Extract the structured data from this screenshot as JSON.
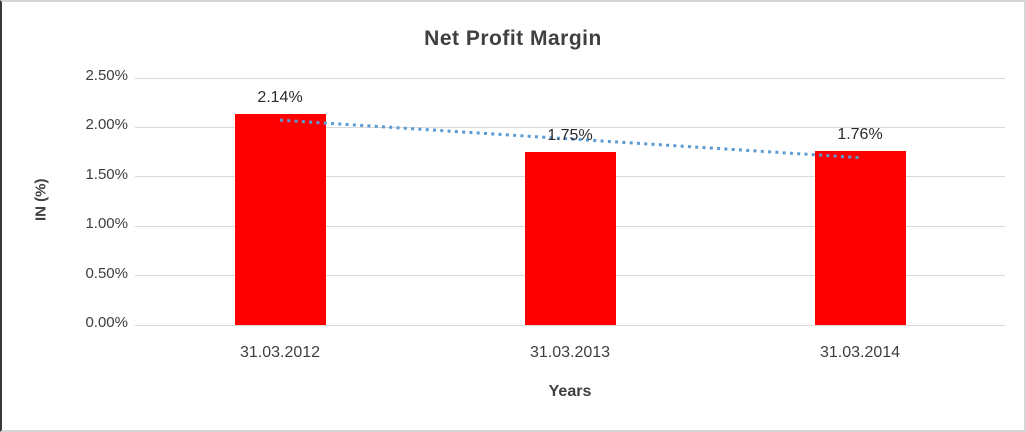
{
  "chart_data": {
    "type": "bar",
    "title": "Net Profit Margin",
    "xlabel": "Years",
    "ylabel": "IN (%)",
    "categories": [
      "31.03.2012",
      "31.03.2013",
      "31.03.2014"
    ],
    "values": [
      2.14,
      1.75,
      1.76
    ],
    "data_labels": [
      "2.14%",
      "1.75%",
      "1.76%"
    ],
    "yticks": [
      {
        "value": 0.0,
        "label": "0.00%"
      },
      {
        "value": 0.5,
        "label": "0.50%"
      },
      {
        "value": 1.0,
        "label": "1.00%"
      },
      {
        "value": 1.5,
        "label": "1.50%"
      },
      {
        "value": 2.0,
        "label": "2.00%"
      },
      {
        "value": 2.5,
        "label": "2.50%"
      }
    ],
    "ylim": [
      0,
      2.5
    ],
    "grid": true,
    "legend": "none",
    "trendline": {
      "type": "linear",
      "style": "dotted"
    },
    "colors": {
      "bar": "#FF0000",
      "trendline": "#5B9BD5",
      "gridline": "#D9D9D9",
      "text": "#404040"
    }
  }
}
